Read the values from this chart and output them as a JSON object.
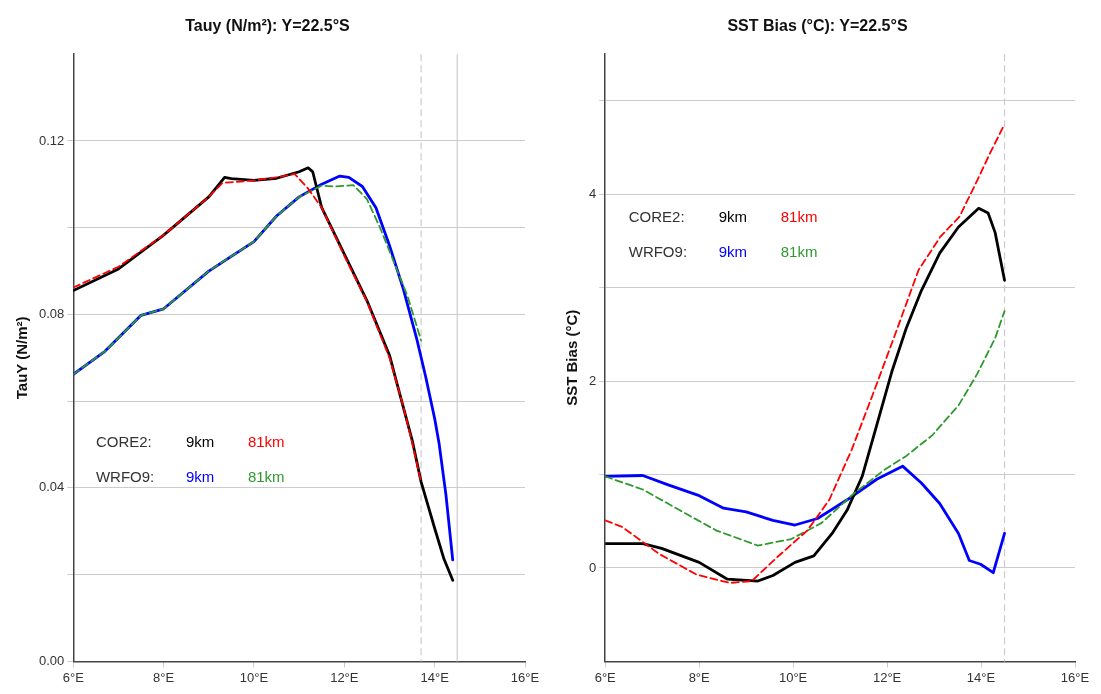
{
  "chart_data": [
    {
      "type": "line",
      "title": "Tauy (N/m²): Y=22.5°S",
      "ylabel": "TauY (N/m²)",
      "xlim": [
        6,
        16
      ],
      "ylim": [
        0,
        0.14
      ],
      "xticks": [
        {
          "value": 6,
          "label": "6°E"
        },
        {
          "value": 8,
          "label": "8°E"
        },
        {
          "value": 10,
          "label": "10°E"
        },
        {
          "value": 12,
          "label": "12°E"
        },
        {
          "value": 14,
          "label": "14°E"
        },
        {
          "value": 16,
          "label": "16°E"
        }
      ],
      "yticks": [
        {
          "value": 0,
          "label": "0.00"
        },
        {
          "value": 0.02,
          "label": null
        },
        0.04,
        {
          "value": 0.06,
          "label": null
        },
        0.08,
        {
          "value": 0.1,
          "label": null
        },
        0.12
      ],
      "grid": "y",
      "legend": "bottom left",
      "marker": "none",
      "annotations": [
        "CORE2:",
        "WRFO9:"
      ],
      "ref_lines": [
        {
          "axis": "x",
          "value": 13.7,
          "color": "#cccccc",
          "line_style": "dashed"
        },
        {
          "axis": "x",
          "value": 14.5,
          "color": "#cccccc",
          "line_style": "solid"
        }
      ],
      "series": [
        {
          "name": "9km",
          "color": "#000000",
          "line_style": "solid",
          "x": [
            6.0,
            7.0,
            8.0,
            9.0,
            9.35,
            9.5,
            10.0,
            10.5,
            11.0,
            11.2,
            11.3,
            11.5,
            12.0,
            12.5,
            13.0,
            13.15,
            13.5,
            13.7,
            14.0,
            14.2,
            14.4
          ],
          "values": [
            0.0855,
            0.0905,
            0.0983,
            0.1071,
            0.1116,
            0.1113,
            0.1109,
            0.1114,
            0.1129,
            0.1138,
            0.1129,
            0.1046,
            0.0939,
            0.0832,
            0.0706,
            0.0647,
            0.0511,
            0.0414,
            0.0307,
            0.0238,
            0.0187
          ]
        },
        {
          "name": "81km",
          "color": "#ff0000",
          "line_style": "dashed",
          "x": [
            6.0,
            7.0,
            8.0,
            9.0,
            9.3,
            10.0,
            10.5,
            10.9,
            11.2,
            11.5,
            12.0,
            12.5,
            13.0,
            13.3,
            13.5,
            13.7
          ],
          "values": [
            0.0862,
            0.091,
            0.0983,
            0.1071,
            0.1103,
            0.1109,
            0.1116,
            0.1124,
            0.109,
            0.1046,
            0.0935,
            0.083,
            0.07,
            0.059,
            0.0505,
            0.0413
          ]
        },
        {
          "name": "9km",
          "color": "#0000ff",
          "line_style": "solid",
          "x": [
            6.0,
            6.7,
            7.5,
            8.0,
            9.0,
            10.0,
            10.5,
            11.0,
            11.5,
            11.9,
            12.1,
            12.4,
            12.7,
            13.0,
            13.3,
            13.6,
            13.8,
            14.0,
            14.1,
            14.25,
            14.4
          ],
          "values": [
            0.0662,
            0.0715,
            0.0798,
            0.0813,
            0.09,
            0.0968,
            0.1027,
            0.1071,
            0.11,
            0.1119,
            0.1116,
            0.1095,
            0.1046,
            0.0959,
            0.0861,
            0.0745,
            0.0657,
            0.056,
            0.0501,
            0.0384,
            0.0234
          ]
        },
        {
          "name": "81km",
          "color": "#2e9a2e",
          "line_style": "dashed",
          "x": [
            6.0,
            6.7,
            7.5,
            8.0,
            9.0,
            10.0,
            10.5,
            11.0,
            11.5,
            11.8,
            12.2,
            12.5,
            12.8,
            13.1,
            13.4,
            13.7
          ],
          "values": [
            0.0662,
            0.0715,
            0.0798,
            0.0813,
            0.09,
            0.0968,
            0.1027,
            0.1071,
            0.1097,
            0.1095,
            0.1098,
            0.1066,
            0.0998,
            0.092,
            0.0842,
            0.074
          ]
        }
      ]
    },
    {
      "type": "line",
      "title": "SST Bias (°C): Y=22.5°S",
      "ylabel": "SST Bias (°C)",
      "xlim": [
        6,
        16
      ],
      "ylim": [
        -1,
        5.5
      ],
      "xticks": [
        {
          "value": 6,
          "label": "6°E"
        },
        {
          "value": 8,
          "label": "8°E"
        },
        {
          "value": 10,
          "label": "10°E"
        },
        {
          "value": 12,
          "label": "12°E"
        },
        {
          "value": 14,
          "label": "14°E"
        },
        {
          "value": 16,
          "label": "16°E"
        }
      ],
      "yticks": [
        0,
        {
          "value": 1,
          "label": null
        },
        2,
        {
          "value": 3,
          "label": null
        },
        4,
        {
          "value": 5,
          "label": null
        }
      ],
      "grid": "y",
      "legend": "top left",
      "marker": "none",
      "annotations": [
        "CORE2:",
        "WRFO9:"
      ],
      "ref_lines": [
        {
          "axis": "x",
          "value": 14.5,
          "color": "#cccccc",
          "line_style": "dashed"
        }
      ],
      "series": [
        {
          "name": "9km",
          "color": "#000000",
          "line_style": "solid",
          "x": [
            6.0,
            6.8,
            7.2,
            8.0,
            8.6,
            9.25,
            9.57,
            10.04,
            10.44,
            10.83,
            11.15,
            11.47,
            11.78,
            12.1,
            12.41,
            12.73,
            13.12,
            13.52,
            13.95,
            14.15,
            14.3,
            14.5
          ],
          "values": [
            0.26,
            0.26,
            0.21,
            0.06,
            -0.12,
            -0.14,
            -0.08,
            0.06,
            0.13,
            0.37,
            0.62,
            0.98,
            1.53,
            2.1,
            2.57,
            2.97,
            3.37,
            3.65,
            3.85,
            3.8,
            3.59,
            3.08
          ]
        },
        {
          "name": "81km",
          "color": "#ff0000",
          "line_style": "dashed",
          "x": [
            6.0,
            6.36,
            7.15,
            7.94,
            8.65,
            9.12,
            9.67,
            10.3,
            10.77,
            11.25,
            11.72,
            12.2,
            12.67,
            13.14,
            13.54,
            13.93,
            14.2,
            14.5
          ],
          "values": [
            0.51,
            0.44,
            0.15,
            -0.07,
            -0.16,
            -0.14,
            0.12,
            0.4,
            0.73,
            1.27,
            1.89,
            2.54,
            3.19,
            3.55,
            3.76,
            4.16,
            4.45,
            4.75
          ]
        },
        {
          "name": "9km",
          "color": "#0000ff",
          "line_style": "solid",
          "x": [
            6.0,
            6.8,
            7.34,
            7.97,
            8.52,
            9.0,
            9.57,
            10.04,
            10.52,
            11.15,
            11.78,
            12.33,
            12.73,
            13.12,
            13.52,
            13.75,
            13.99,
            14.26,
            14.5
          ],
          "values": [
            0.98,
            0.99,
            0.89,
            0.78,
            0.64,
            0.6,
            0.51,
            0.46,
            0.53,
            0.73,
            0.95,
            1.09,
            0.91,
            0.69,
            0.37,
            0.08,
            0.04,
            -0.05,
            0.37
          ]
        },
        {
          "name": "81km",
          "color": "#2e9a2e",
          "line_style": "dashed",
          "x": [
            6.0,
            6.8,
            7.58,
            8.37,
            9.25,
            9.96,
            10.6,
            11.3,
            11.94,
            12.41,
            12.96,
            13.52,
            13.91,
            14.3,
            14.5
          ],
          "values": [
            0.98,
            0.84,
            0.62,
            0.4,
            0.24,
            0.31,
            0.48,
            0.8,
            1.05,
            1.2,
            1.42,
            1.74,
            2.07,
            2.46,
            2.75
          ]
        }
      ]
    }
  ]
}
